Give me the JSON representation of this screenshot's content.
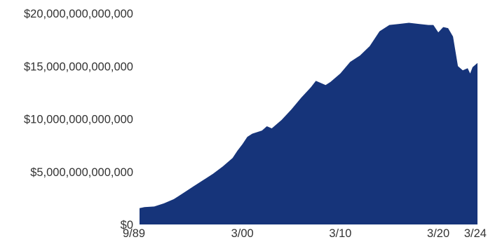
{
  "chart_data": {
    "type": "area",
    "color": "#16347a",
    "ylim": [
      0,
      20000000000000
    ],
    "yticks": [
      {
        "value": 0,
        "label": "$0"
      },
      {
        "value": 5000000000000,
        "label": "$5,000,000,000,000"
      },
      {
        "value": 10000000000000,
        "label": "$10,000,000,000,000"
      },
      {
        "value": 15000000000000,
        "label": "$15,000,000,000,000"
      },
      {
        "value": 20000000000000,
        "label": "$20,000,000,000,000"
      }
    ],
    "xticks": [
      {
        "date": "1989-09",
        "label": "9/89"
      },
      {
        "date": "2000-03",
        "label": "3/00"
      },
      {
        "date": "2010-03",
        "label": "3/10"
      },
      {
        "date": "2020-03",
        "label": "3/20"
      },
      {
        "date": "2024-03",
        "label": "3/24"
      }
    ],
    "x": [
      "1989-09",
      "1990-03",
      "1991-03",
      "1992-03",
      "1993-03",
      "1994-03",
      "1995-03",
      "1996-03",
      "1997-03",
      "1998-03",
      "1999-03",
      "1999-09",
      "2000-03",
      "2000-09",
      "2001-03",
      "2002-03",
      "2002-09",
      "2003-03",
      "2004-03",
      "2005-03",
      "2006-03",
      "2007-03",
      "2007-09",
      "2008-03",
      "2008-09",
      "2009-03",
      "2010-03",
      "2011-03",
      "2012-03",
      "2013-03",
      "2014-03",
      "2015-03",
      "2016-03",
      "2017-03",
      "2018-03",
      "2019-03",
      "2019-09",
      "2020-03",
      "2020-09",
      "2021-03",
      "2021-09",
      "2022-03",
      "2022-09",
      "2023-03",
      "2023-06",
      "2023-09",
      "2024-03"
    ],
    "values": [
      1550000000000,
      1650000000000,
      1700000000000,
      2000000000000,
      2400000000000,
      3000000000000,
      3600000000000,
      4200000000000,
      4800000000000,
      5500000000000,
      6300000000000,
      7000000000000,
      7600000000000,
      8300000000000,
      8600000000000,
      8900000000000,
      9300000000000,
      9100000000000,
      9900000000000,
      10900000000000,
      12000000000000,
      13000000000000,
      13600000000000,
      13400000000000,
      13200000000000,
      13500000000000,
      14300000000000,
      15400000000000,
      16000000000000,
      16900000000000,
      18300000000000,
      18900000000000,
      19000000000000,
      19100000000000,
      19000000000000,
      18900000000000,
      18900000000000,
      18200000000000,
      18700000000000,
      18600000000000,
      17800000000000,
      15000000000000,
      14600000000000,
      14800000000000,
      14300000000000,
      14900000000000,
      15300000000000
    ]
  }
}
